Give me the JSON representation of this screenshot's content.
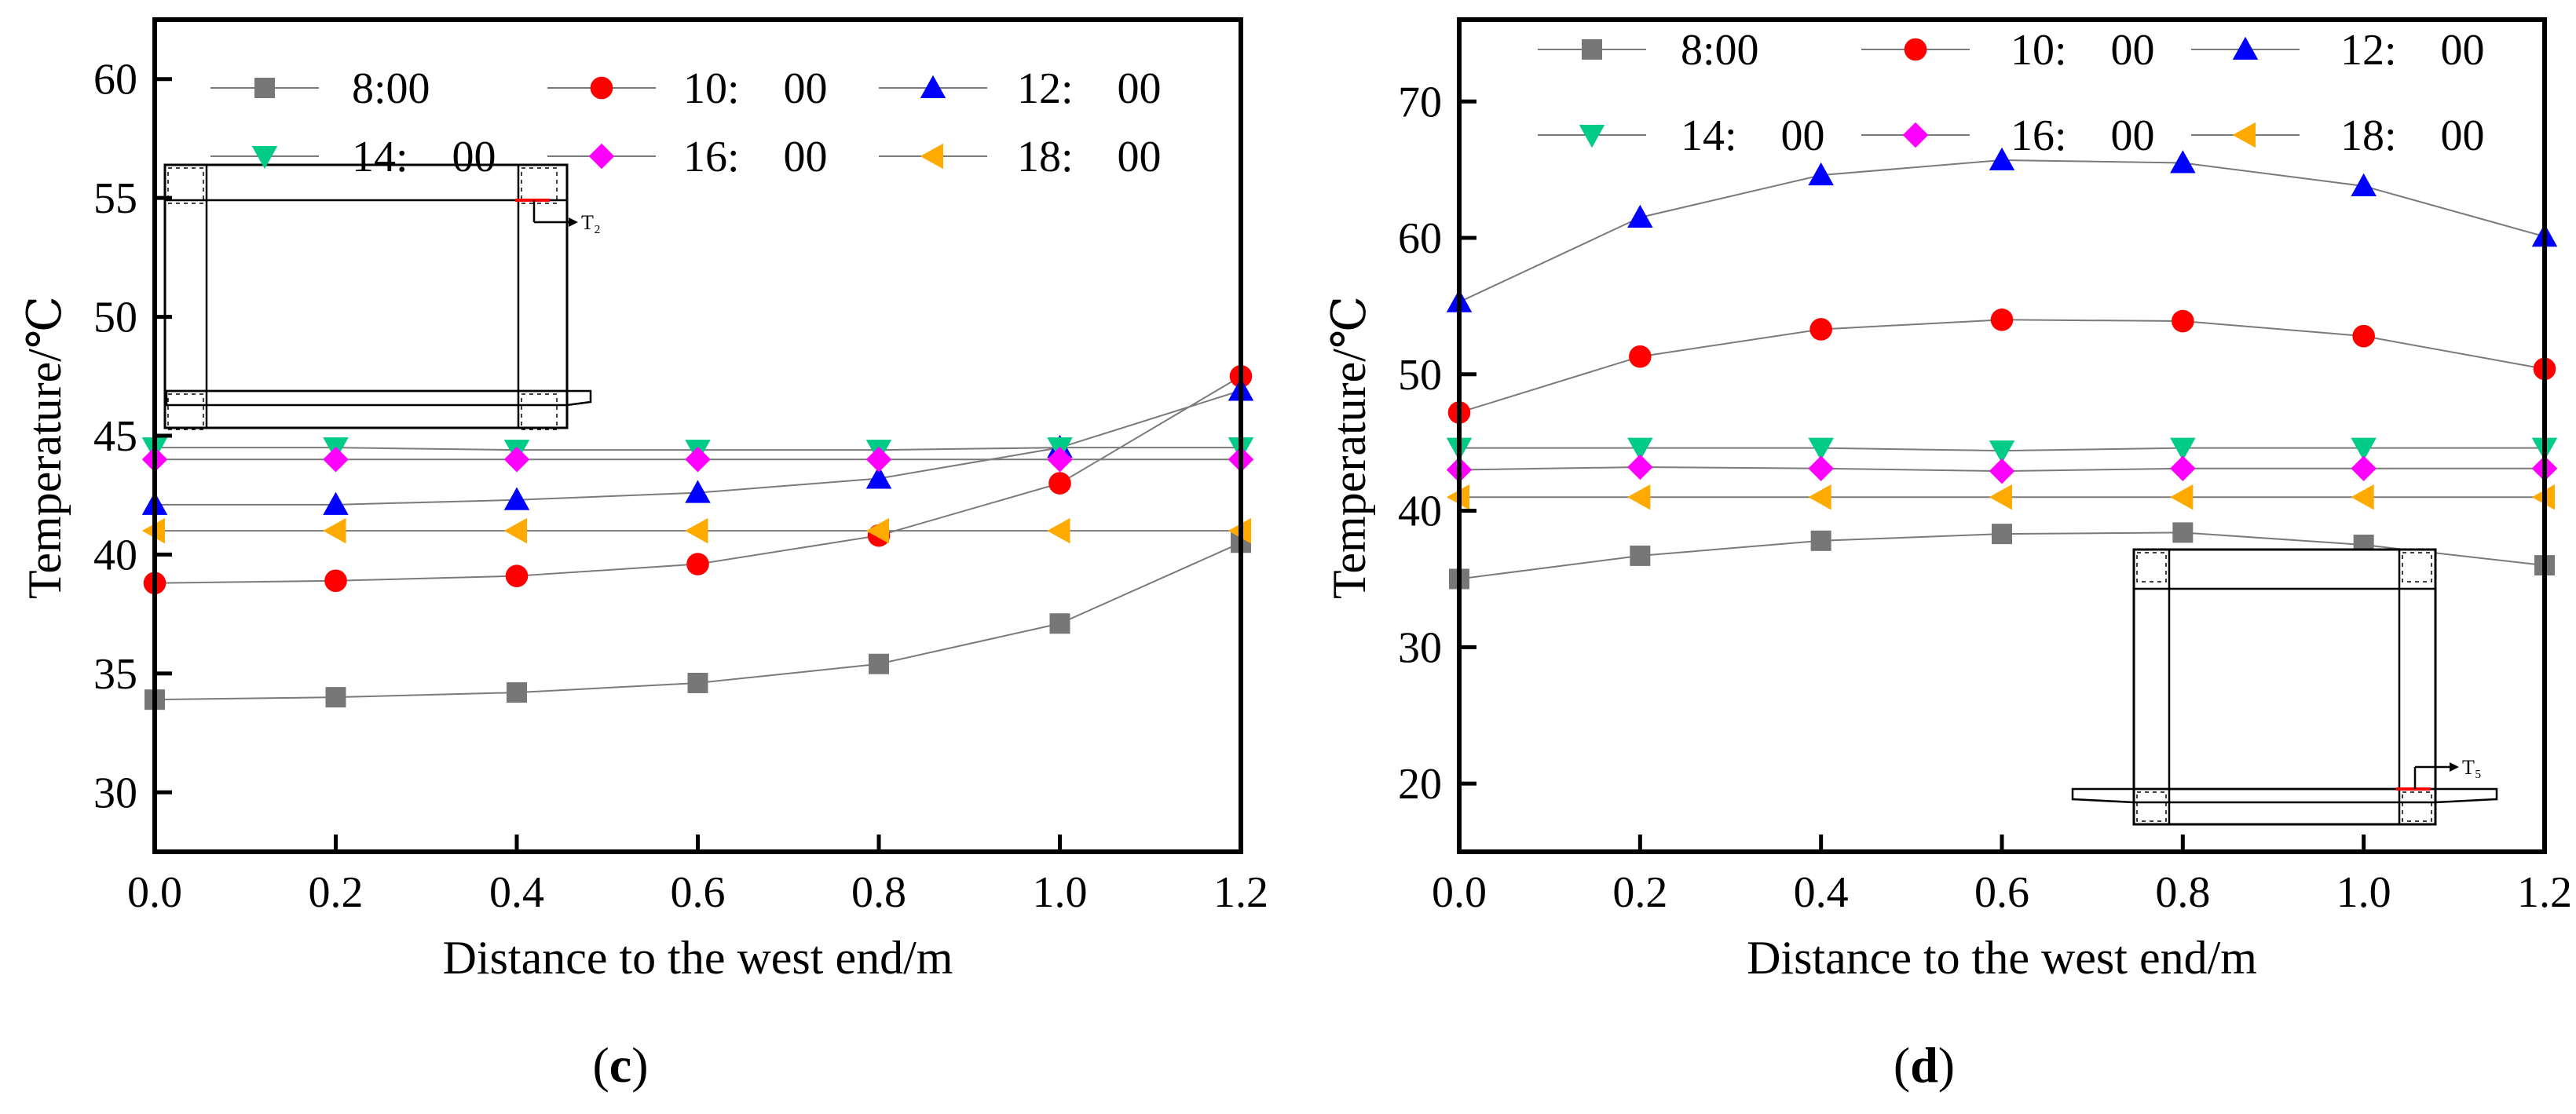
{
  "chart_data": [
    {
      "type": "line",
      "panel_label": "c",
      "xlabel": "Distance to the west end/m",
      "ylabel": "Temperature/℃",
      "xlim": [
        0,
        1.2
      ],
      "ylim": [
        27.5,
        62.5
      ],
      "xticks": [
        "0.0",
        "0.2",
        "0.4",
        "0.6",
        "0.8",
        "1.0",
        "1.2"
      ],
      "yticks": [
        "30",
        "35",
        "40",
        "45",
        "50",
        "55",
        "60"
      ],
      "grid": false,
      "legend": "top",
      "x": [
        0,
        0.2,
        0.4,
        0.6,
        0.8,
        1.0,
        1.2
      ],
      "series": [
        {
          "name": "8:00",
          "values": [
            33.9,
            34.0,
            34.2,
            34.6,
            35.4,
            37.1,
            40.5
          ],
          "marker": "square",
          "color": "#777777"
        },
        {
          "name": "10:　00",
          "values": [
            38.8,
            38.9,
            39.1,
            39.6,
            40.8,
            43.0,
            47.5
          ],
          "marker": "circle",
          "color": "#ff0000"
        },
        {
          "name": "12:　00",
          "values": [
            42.1,
            42.1,
            42.3,
            42.6,
            43.2,
            44.5,
            46.9
          ],
          "marker": "triangle-up",
          "color": "#0000ff"
        },
        {
          "name": "14:　00",
          "values": [
            44.5,
            44.5,
            44.4,
            44.4,
            44.4,
            44.5,
            44.5
          ],
          "marker": "triangle-down",
          "color": "#00cc88"
        },
        {
          "name": "16:　00",
          "values": [
            44.0,
            44.0,
            44.0,
            44.0,
            44.0,
            44.0,
            44.0
          ],
          "marker": "diamond",
          "color": "#ff00ff"
        },
        {
          "name": "18:　00",
          "values": [
            41.0,
            41.0,
            41.0,
            41.0,
            41.0,
            41.0,
            41.0
          ],
          "marker": "triangle-left",
          "color": "#ffaa00"
        }
      ],
      "inset_label": "T₂"
    },
    {
      "type": "line",
      "panel_label": "d",
      "xlabel": "Distance to the west end/m",
      "ylabel": "Temperature/℃",
      "xlim": [
        0,
        1.2
      ],
      "ylim": [
        15,
        76
      ],
      "xticks": [
        "0.0",
        "0.2",
        "0.4",
        "0.6",
        "0.8",
        "1.0",
        "1.2"
      ],
      "yticks": [
        "20",
        "30",
        "40",
        "50",
        "60",
        "70"
      ],
      "grid": false,
      "legend": "top",
      "x": [
        0,
        0.2,
        0.4,
        0.6,
        0.8,
        1.0,
        1.2
      ],
      "series": [
        {
          "name": "8:00",
          "values": [
            35.0,
            36.7,
            37.8,
            38.3,
            38.4,
            37.5,
            36.0
          ],
          "marker": "square",
          "color": "#777777"
        },
        {
          "name": "10:　00",
          "values": [
            47.2,
            51.3,
            53.3,
            54.0,
            53.9,
            52.8,
            50.4
          ],
          "marker": "circle",
          "color": "#ff0000"
        },
        {
          "name": "12:　00",
          "values": [
            55.3,
            61.5,
            64.6,
            65.7,
            65.5,
            63.8,
            60.1
          ],
          "marker": "triangle-up",
          "color": "#0000ff"
        },
        {
          "name": "14:　00",
          "values": [
            44.6,
            44.6,
            44.6,
            44.4,
            44.6,
            44.6,
            44.6
          ],
          "marker": "triangle-down",
          "color": "#00cc88"
        },
        {
          "name": "16:　00",
          "values": [
            43.0,
            43.2,
            43.1,
            42.9,
            43.1,
            43.1,
            43.1
          ],
          "marker": "diamond",
          "color": "#ff00ff"
        },
        {
          "name": "18:　00",
          "values": [
            41.0,
            41.0,
            41.0,
            41.0,
            41.0,
            41.0,
            41.0
          ],
          "marker": "triangle-left",
          "color": "#ffaa00"
        }
      ],
      "inset_label": "T₅"
    }
  ]
}
